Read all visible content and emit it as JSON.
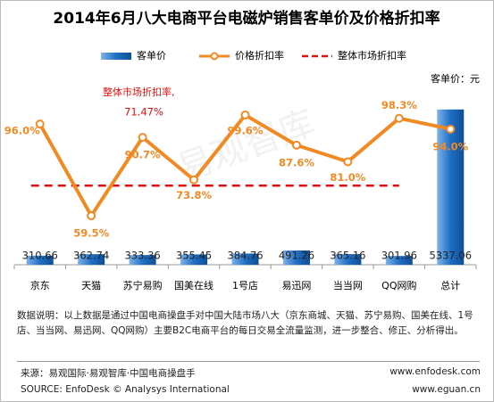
{
  "chart_data": {
    "type": "bar-line",
    "title": "2014年6月八大电商平台电磁炉销售客单价及价格折扣率",
    "unit_label": "客单价：元",
    "watermark": "易观智库",
    "categories": [
      "京东",
      "天猫",
      "苏宁易购",
      "国美在线",
      "1号店",
      "易迅网",
      "当当网",
      "QQ网购",
      "总计"
    ],
    "series": [
      {
        "name": "客单价",
        "type": "bar",
        "color": "#1f6fc4",
        "values": [
          310.66,
          362.74,
          333.36,
          355.45,
          384.76,
          491.26,
          365.16,
          301.96,
          5337.06
        ]
      },
      {
        "name": "价格折扣率",
        "type": "line",
        "axis": "y2",
        "color": "#f28a24",
        "values": [
          96.0,
          59.5,
          90.7,
          73.8,
          99.6,
          87.6,
          81.0,
          98.3,
          94.0
        ],
        "value_labels": [
          "96.0%",
          "59.5%",
          "90.7%",
          "73.8%",
          "99.6%",
          "87.6%",
          "81.0%",
          "98.3%",
          "94.0%"
        ]
      }
    ],
    "reference": {
      "name": "整体市场折扣率",
      "axis": "y2",
      "color": "#e01010",
      "value": 71.47,
      "value_label": "71.47%",
      "annotation": "整体市场折扣率,"
    },
    "ylim": [
      0,
      5700
    ],
    "y2lim": [
      40,
      106
    ],
    "note": "数据说明：以上数据是通过中国电商操盘手对中国大陆市场八大（京东商城、天猫、苏宁易购、国美在线、1号店、当当网、易迅网、QQ网购）主要B2C电商平台的每日交易全流量监测，进一步整合、修正、分析得出。",
    "source": "来源：易观国际·易观智库·中国电商操盘手",
    "source_en": "SOURCE: EnfoDesk © Analysys International",
    "site1": "www.enfodesk.com",
    "site2": "www.eguan.cn"
  }
}
